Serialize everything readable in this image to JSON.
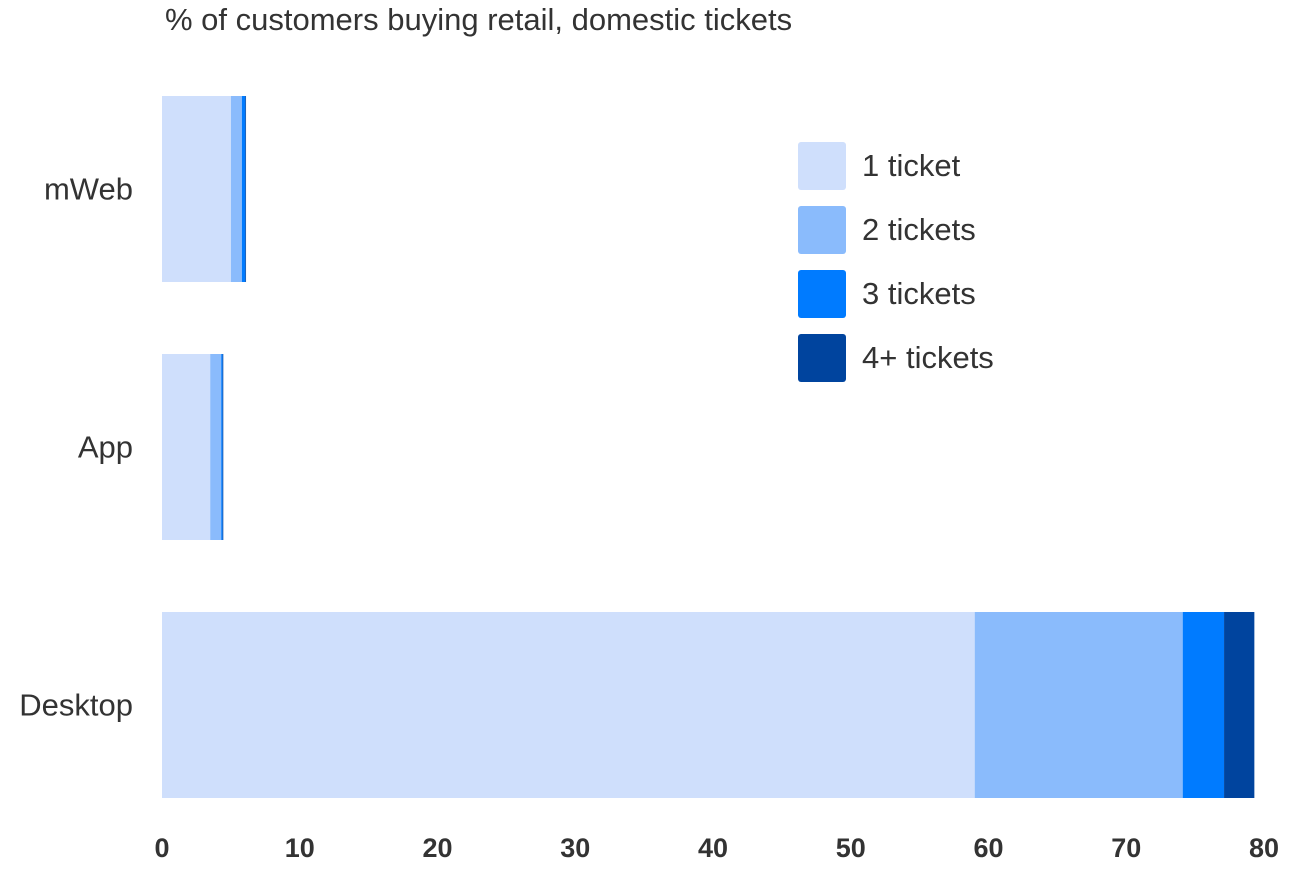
{
  "chart_data": {
    "type": "bar",
    "orientation": "horizontal",
    "stacked": true,
    "title": "% of customers buying retail, domestic tickets",
    "xlabel": "",
    "ylabel": "",
    "categories": [
      "mWeb",
      "App",
      "Desktop"
    ],
    "series": [
      {
        "name": "1 ticket",
        "color": "#cfdffc",
        "values": [
          5.0,
          3.5,
          59.0
        ]
      },
      {
        "name": "2 tickets",
        "color": "#8abbfc",
        "values": [
          0.8,
          0.8,
          15.1
        ]
      },
      {
        "name": "3 tickets",
        "color": "#007bff",
        "values": [
          0.25,
          0.1,
          3.0
        ]
      },
      {
        "name": "4+ tickets",
        "color": "#00449e",
        "values": [
          0.05,
          0.05,
          2.2
        ]
      }
    ],
    "xlim": [
      0,
      80
    ],
    "xticks": [
      0,
      10,
      20,
      30,
      40,
      50,
      60,
      70,
      80
    ],
    "grid": false,
    "legend_position": "top-right"
  }
}
